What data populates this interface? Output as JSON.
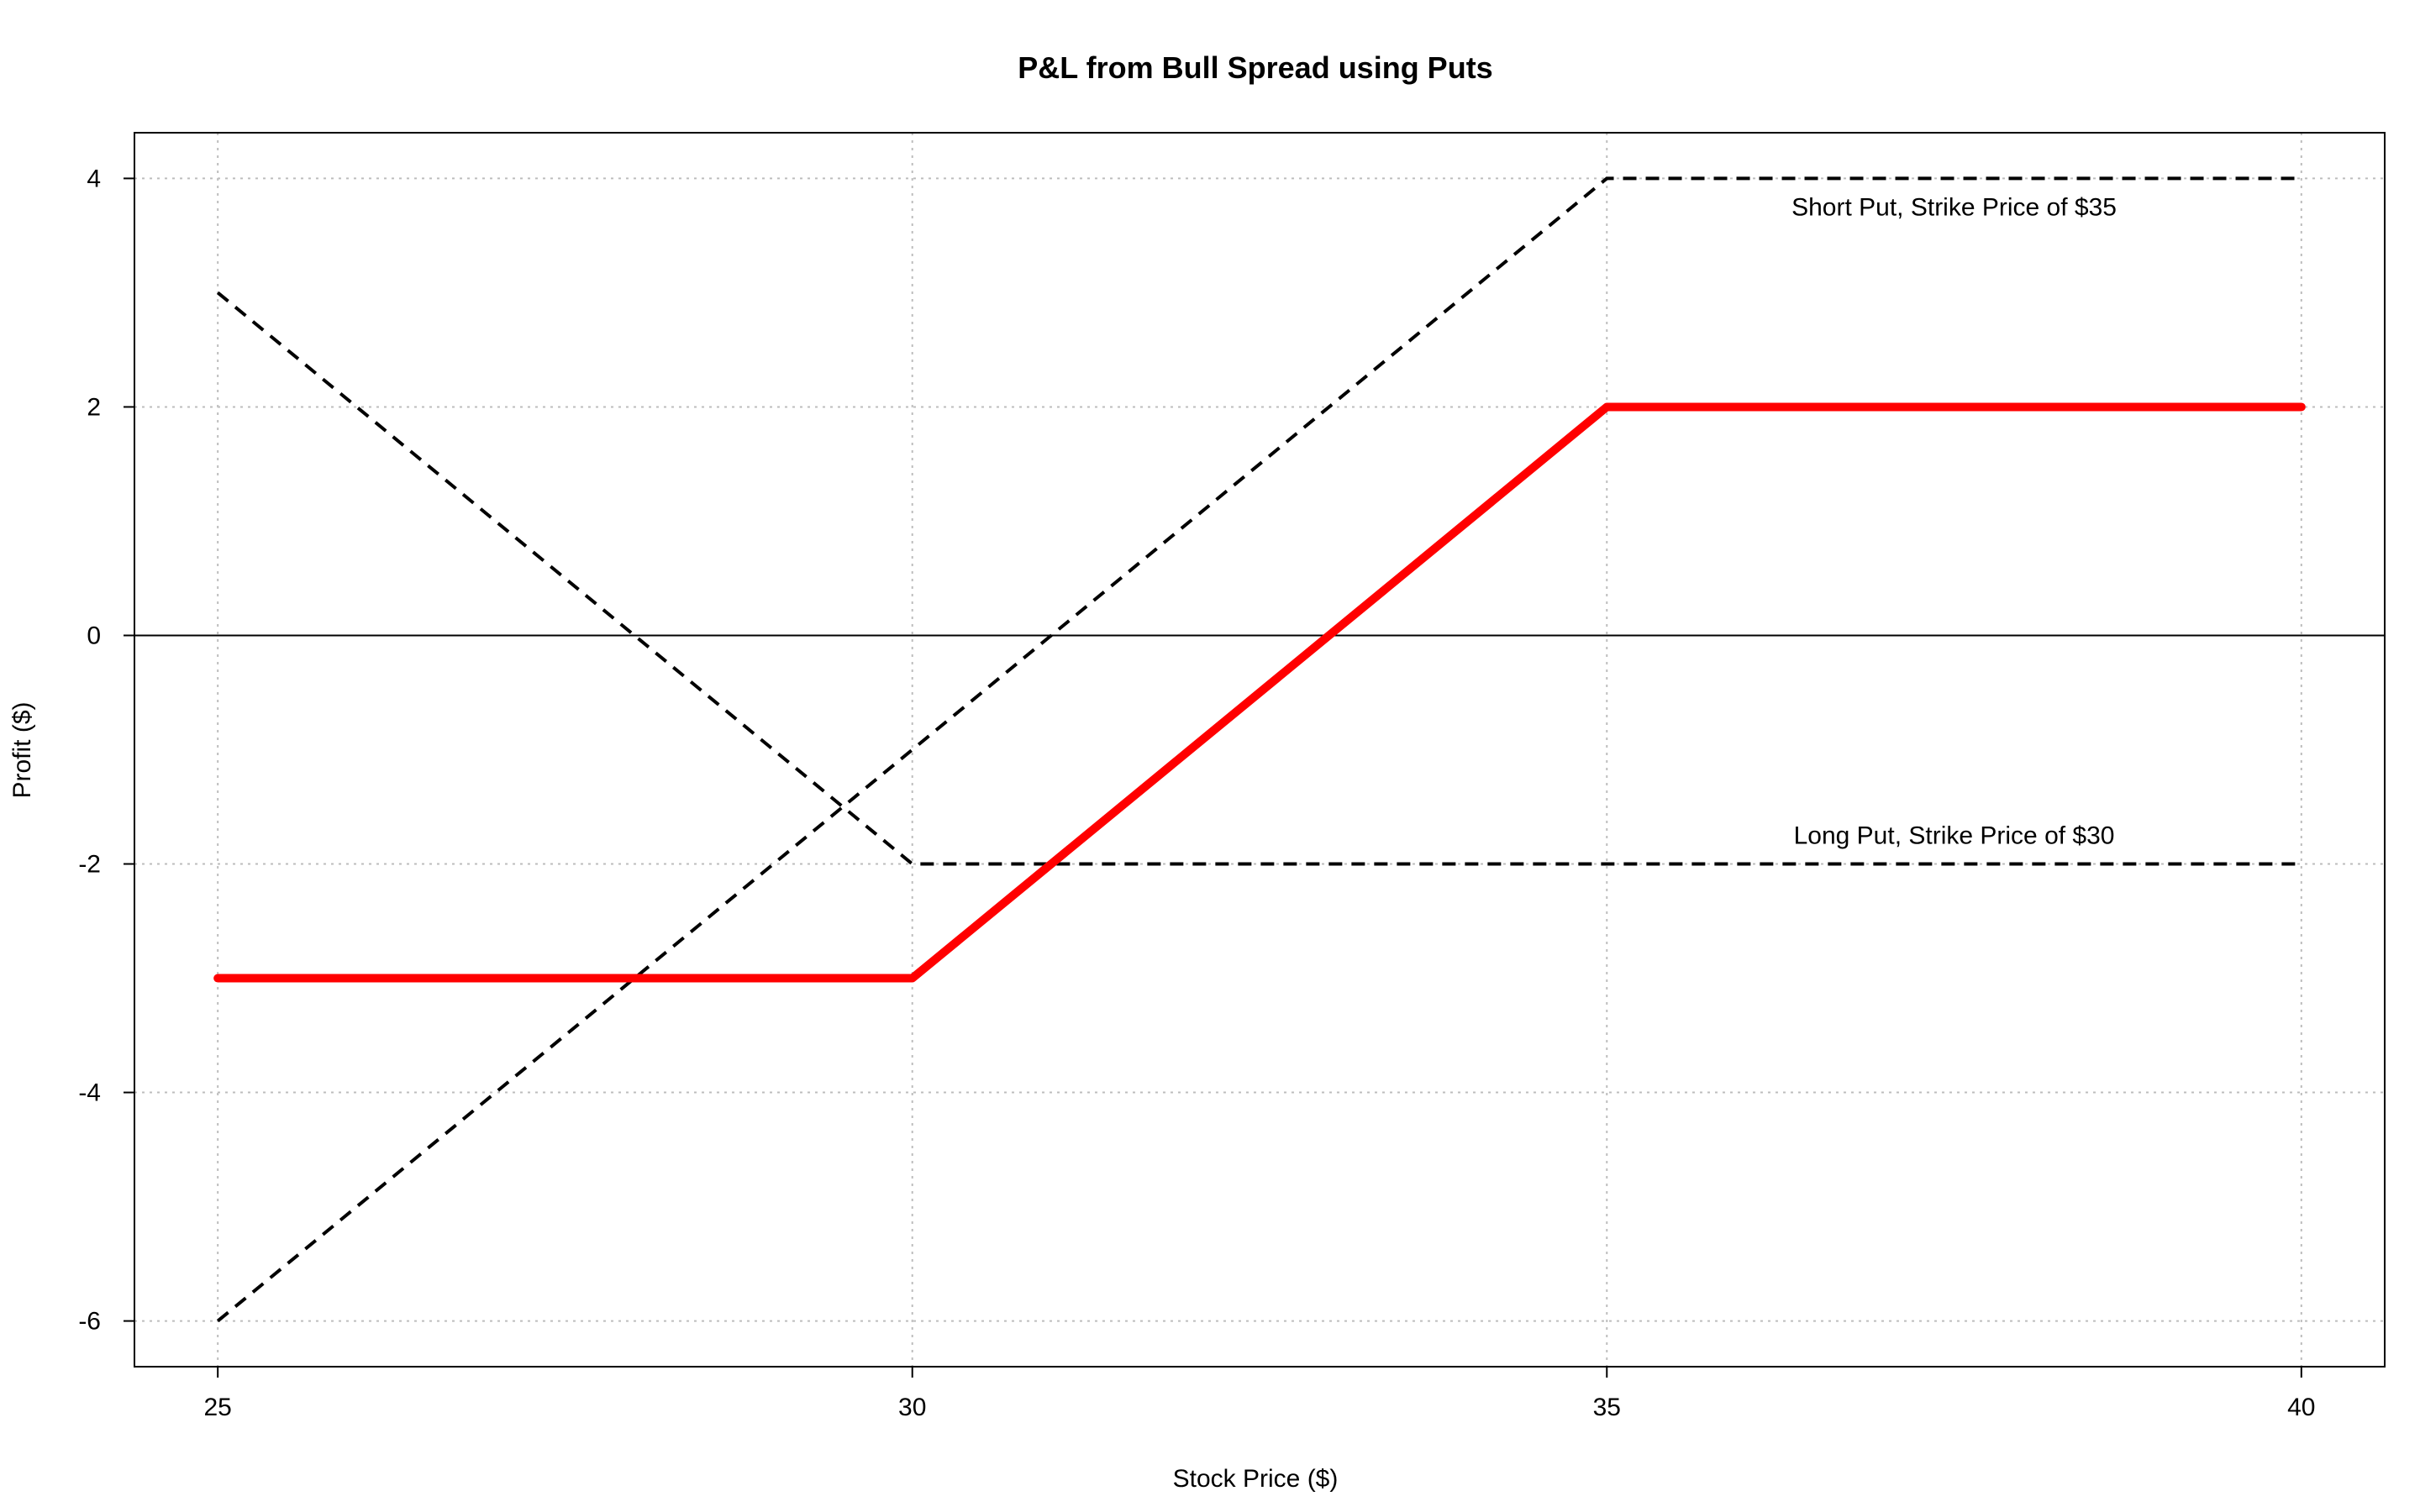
{
  "chart_data": {
    "type": "line",
    "title": "P&L from Bull Spread using Puts",
    "xlabel": "Stock Price ($)",
    "ylabel": "Profit ($)",
    "xlim": [
      24.4,
      40.6
    ],
    "ylim": [
      -6.4,
      4.4
    ],
    "xticks": [
      25,
      30,
      35,
      40
    ],
    "yticks": [
      -6,
      -4,
      -2,
      0,
      2,
      4
    ],
    "grid": true,
    "zero_line": true,
    "series": [
      {
        "style": "dashed",
        "color": "#000000",
        "x": [
          25,
          35,
          40
        ],
        "y": [
          -6,
          4,
          4
        ]
      },
      {
        "style": "dashed",
        "color": "#000000",
        "x": [
          25,
          30,
          40
        ],
        "y": [
          3,
          -2,
          -2
        ]
      },
      {
        "style": "solid",
        "color": "#ff0000",
        "x": [
          25,
          30,
          35,
          40
        ],
        "y": [
          -3,
          -3,
          2,
          2
        ]
      }
    ],
    "annotations": [
      {
        "text": "Short Put, Strike Price of $35",
        "x": 37.5,
        "y": 3.75
      },
      {
        "text": "Long Put, Strike Price of $30",
        "x": 37.5,
        "y": -1.75
      }
    ]
  }
}
